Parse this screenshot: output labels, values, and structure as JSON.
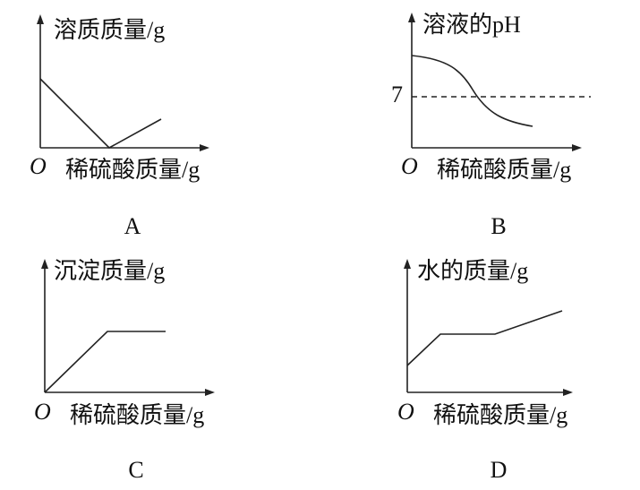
{
  "panels": [
    {
      "y_label": "溶质质量/g",
      "origin": "O",
      "x_label": "稀硫酸质量/g",
      "caption": "A"
    },
    {
      "y_label": "溶液的pH",
      "y_tick": "7",
      "origin": "O",
      "x_label": "稀硫酸质量/g",
      "caption": "B"
    },
    {
      "y_label": "沉淀质量/g",
      "origin": "O",
      "x_label": "稀硫酸质量/g",
      "caption": "C"
    },
    {
      "y_label": "水的质量/g",
      "origin": "O",
      "x_label": "稀硫酸质量/g",
      "caption": "D"
    }
  ]
}
